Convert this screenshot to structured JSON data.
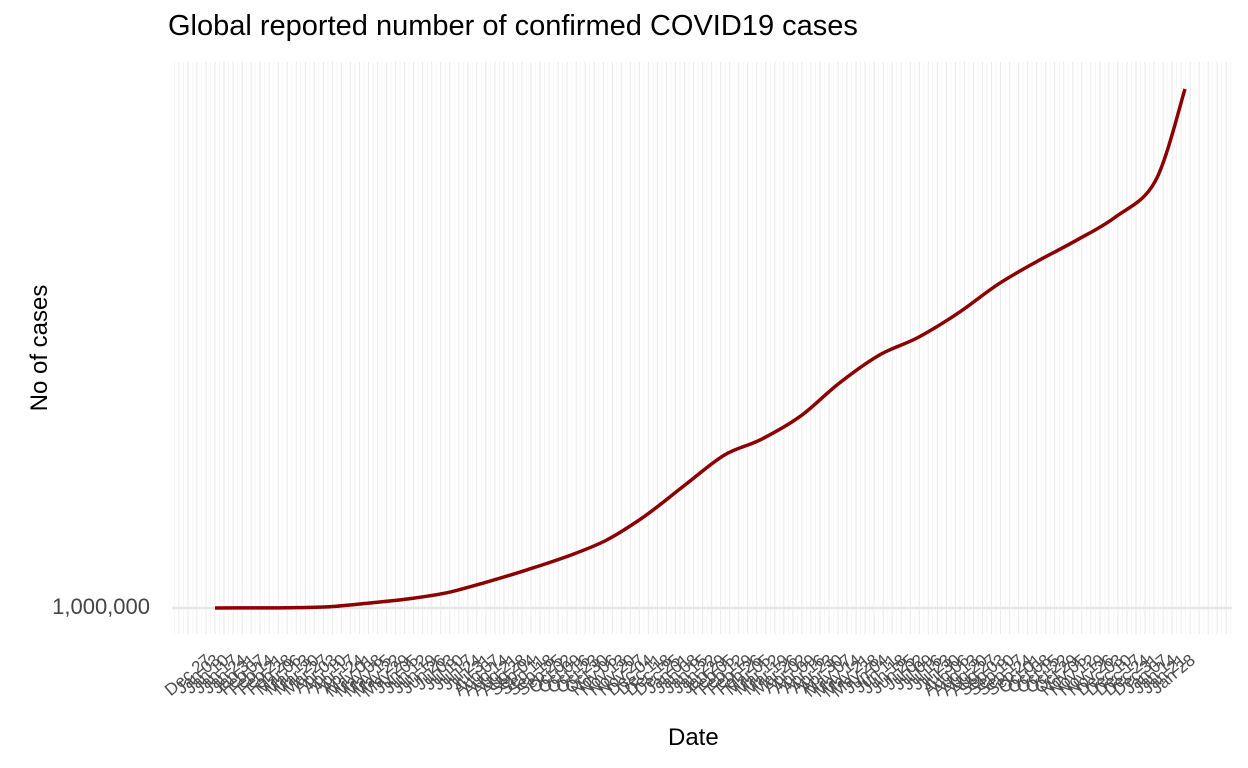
{
  "chart_data": {
    "type": "line",
    "title": "Global reported number of confirmed COVID19 cases",
    "xlabel": "Date",
    "ylabel": "No of cases",
    "y_tick_label": "1,000,000",
    "grid": true,
    "legend": "none",
    "x_date_range": [
      "2020-01-03",
      "2022-01-24"
    ],
    "series": [
      {
        "color": "#8B0000",
        "x": [
          "2020-01-03",
          "2020-02-01",
          "2020-03-01",
          "2020-04-01",
          "2020-05-01",
          "2020-06-01",
          "2020-07-01",
          "2020-08-01",
          "2020-09-01",
          "2020-10-01",
          "2020-11-01",
          "2020-12-01",
          "2021-01-01",
          "2021-02-01",
          "2021-03-01",
          "2021-04-01",
          "2021-05-01",
          "2021-06-01",
          "2021-07-01",
          "2021-08-01",
          "2021-09-01",
          "2021-10-01",
          "2021-11-01",
          "2021-12-01",
          "2022-01-01",
          "2022-01-24"
        ],
        "y": [
          0,
          0.08,
          0.2,
          0.9,
          3.3,
          6.2,
          10.4,
          17.7,
          25.9,
          34.7,
          45.8,
          62.2,
          83.2,
          103.8,
          114.2,
          130.2,
          152.6,
          171.6,
          183.5,
          200.0,
          219.6,
          235.0,
          249.5,
          265.2,
          289.6,
          352.1
        ]
      }
    ]
  }
}
